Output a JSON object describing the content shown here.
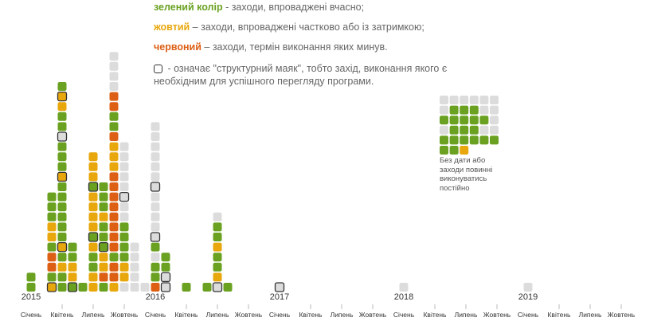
{
  "legend": [
    {
      "key": "green",
      "label": "зелений колір",
      "desc": " - заходи, впроваджені вчасно;"
    },
    {
      "key": "yellow",
      "label": "жовтий",
      "desc": " – заходи, впроваджені частково або із затримкою;"
    },
    {
      "key": "red",
      "label": "червоний",
      "desc": " – заходи, термін виконання яких минув."
    }
  ],
  "beacon_note": {
    "line1": " - означає \"структурний маяк\", тобто захід, виконання якого є",
    "line2": "необхідним для успішного перегляду програми."
  },
  "colors": {
    "green": "#6aa121",
    "yellow": "#e8a70c",
    "red": "#dc5f14",
    "grey": "#dcdcdc",
    "beacon_border": "#333333"
  },
  "chart_data": {
    "type": "bar",
    "description_unit": "one square = one measure",
    "years": [
      "2015",
      "2016",
      "2017",
      "2018",
      "2019"
    ],
    "months": [
      "Січень",
      "Квітень",
      "Липень",
      "Жовтень"
    ],
    "columns": [
      {
        "period": "2015-01",
        "stack": "gg"
      },
      {
        "period": "2015-03",
        "stack": "Ygrrgyyggg"
      },
      {
        "period": "2015-04",
        "stack": "ggygYggggggYgggWggyYg"
      },
      {
        "period": "2015-05",
        "stack": "Gyygg"
      },
      {
        "period": "2015-06",
        "stack": "g"
      },
      {
        "period": "2015-07",
        "stack": "yyggyGyyyyGyyy"
      },
      {
        "period": "2015-08",
        "stack": "gryyGggyggg"
      },
      {
        "period": "2015-09",
        "stack": "yrrgrrrrrrrryyyrggrrwwww"
      },
      {
        "period": "2015-10",
        "stack": "wyyggggwwWwwwww"
      },
      {
        "period": "2015-11",
        "stack": "wwwww"
      },
      {
        "period": "2015-12",
        "stack": "w"
      },
      {
        "period": "2016-01",
        "stack": "rggwgWwwwwWwwwwww"
      },
      {
        "period": "2016-02",
        "stack": "WWgg"
      },
      {
        "period": "2016-04",
        "stack": "g"
      },
      {
        "period": "2016-06",
        "stack": "g"
      },
      {
        "period": "2016-07",
        "stack": "Wyggyggw"
      },
      {
        "period": "2016-08",
        "stack": "g"
      },
      {
        "period": "2017-01",
        "stack": "W"
      },
      {
        "period": "2018-01",
        "stack": "w"
      },
      {
        "period": "2019-01",
        "stack": "w"
      }
    ],
    "no_date_grid": [
      "wwwwww",
      "wgggww",
      "gggggw",
      "wgggww",
      "gggggg",
      "ggy"
    ],
    "no_date_note": "Без дати або заходи повинні виконуватись постійно"
  }
}
